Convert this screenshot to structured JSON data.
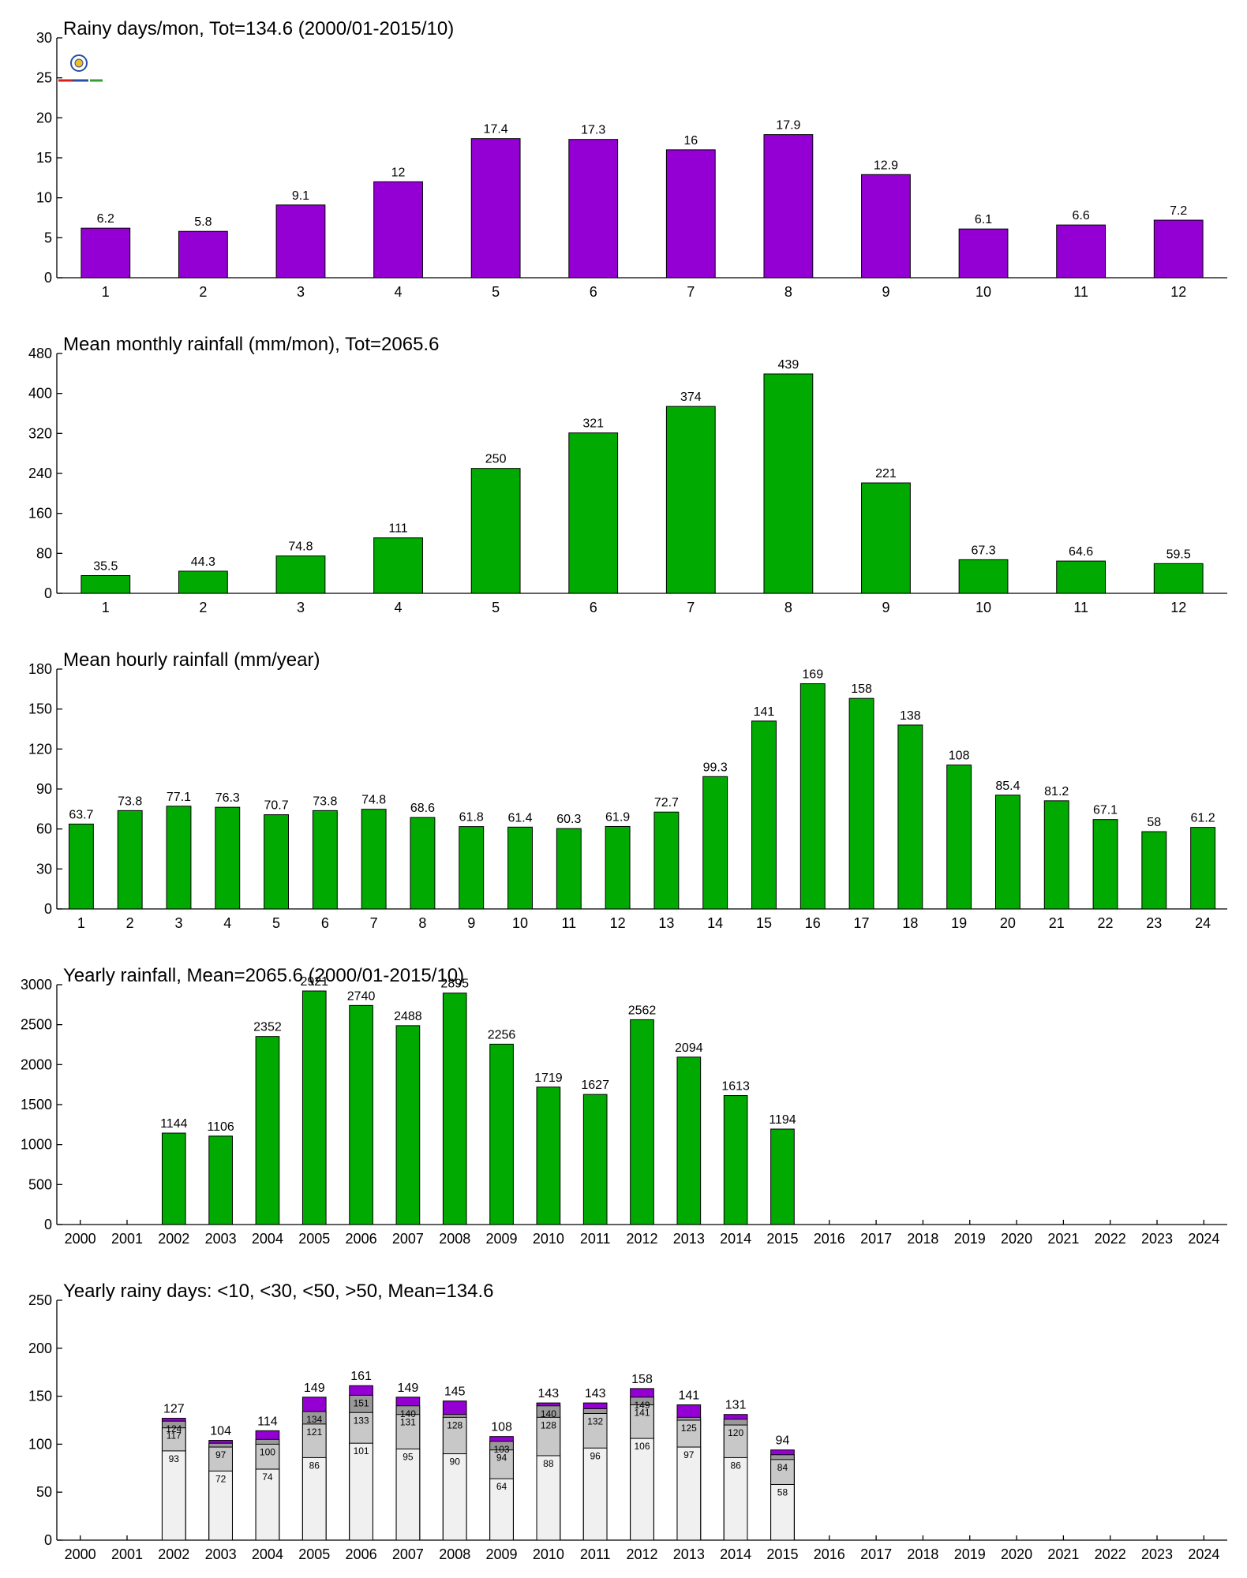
{
  "chart_data": [
    {
      "type": "bar",
      "title": "Rainy days/mon, Tot=134.6 (2000/01-2015/10)",
      "color": "#9400D3",
      "categories": [
        "1",
        "2",
        "3",
        "4",
        "5",
        "6",
        "7",
        "8",
        "9",
        "10",
        "11",
        "12"
      ],
      "values": [
        6.2,
        5.8,
        9.1,
        12,
        17.4,
        17.3,
        16,
        17.9,
        12.9,
        6.1,
        6.6,
        7.2
      ],
      "value_labels": [
        "6.2",
        "5.8",
        "9.1",
        "12",
        "17.4",
        "17.3",
        "16",
        "17.9",
        "12.9",
        "6.1",
        "6.6",
        "7.2"
      ],
      "ylim": [
        0,
        30
      ],
      "yticks": [
        "0",
        "5",
        "10",
        "15",
        "20",
        "25",
        "30"
      ],
      "grid": false
    },
    {
      "type": "bar",
      "title": "Mean monthly rainfall (mm/mon), Tot=2065.6",
      "color": "#00AA00",
      "categories": [
        "1",
        "2",
        "3",
        "4",
        "5",
        "6",
        "7",
        "8",
        "9",
        "10",
        "11",
        "12"
      ],
      "values": [
        35.5,
        44.3,
        74.8,
        111,
        250,
        321,
        374,
        439,
        221,
        67.3,
        64.6,
        59.5
      ],
      "value_labels": [
        "35.5",
        "44.3",
        "74.8",
        "111",
        "250",
        "321",
        "374",
        "439",
        "221",
        "67.3",
        "64.6",
        "59.5"
      ],
      "ylim": [
        0,
        480
      ],
      "yticks": [
        "0",
        "80",
        "160",
        "240",
        "320",
        "400",
        "480"
      ],
      "grid": false
    },
    {
      "type": "bar",
      "title": "Mean hourly rainfall (mm/year)",
      "color": "#00AA00",
      "categories": [
        "1",
        "2",
        "3",
        "4",
        "5",
        "6",
        "7",
        "8",
        "9",
        "10",
        "11",
        "12",
        "13",
        "14",
        "15",
        "16",
        "17",
        "18",
        "19",
        "20",
        "21",
        "22",
        "23",
        "24"
      ],
      "values": [
        63.7,
        73.8,
        77.1,
        76.3,
        70.7,
        73.8,
        74.8,
        68.6,
        61.8,
        61.4,
        60.3,
        61.9,
        72.7,
        99.3,
        141,
        169,
        158,
        138,
        108,
        85.4,
        81.2,
        67.1,
        58,
        61.2
      ],
      "value_labels": [
        "63.7",
        "73.8",
        "77.1",
        "76.3",
        "70.7",
        "73.8",
        "74.8",
        "68.6",
        "61.8",
        "61.4",
        "60.3",
        "61.9",
        "72.7",
        "99.3",
        "141",
        "169",
        "158",
        "138",
        "108",
        "85.4",
        "81.2",
        "67.1",
        "58",
        "61.2"
      ],
      "ylim": [
        0,
        180
      ],
      "yticks": [
        "0",
        "30",
        "60",
        "90",
        "120",
        "150",
        "180"
      ],
      "grid": false
    },
    {
      "type": "bar",
      "title": "Yearly rainfall, Mean=2065.6  (2000/01-2015/10)",
      "color": "#00AA00",
      "categories": [
        "2000",
        "2001",
        "2002",
        "2003",
        "2004",
        "2005",
        "2006",
        "2007",
        "2008",
        "2009",
        "2010",
        "2011",
        "2012",
        "2013",
        "2014",
        "2015",
        "2016",
        "2017",
        "2018",
        "2019",
        "2020",
        "2021",
        "2022",
        "2023",
        "2024"
      ],
      "values": [
        null,
        null,
        1144,
        1106,
        2352,
        2921,
        2740,
        2488,
        2895,
        2256,
        1719,
        1627,
        2562,
        2094,
        1613,
        1194,
        null,
        null,
        null,
        null,
        null,
        null,
        null,
        null,
        null
      ],
      "value_labels": [
        "",
        "",
        "1144",
        "1106",
        "2352",
        "2921",
        "2740",
        "2488",
        "2895",
        "2256",
        "1719",
        "1627",
        "2562",
        "2094",
        "1613",
        "1194",
        "",
        "",
        "",
        "",
        "",
        "",
        "",
        "",
        ""
      ],
      "ylim": [
        0,
        3000
      ],
      "yticks": [
        "0",
        "500",
        "1000",
        "1500",
        "2000",
        "2500",
        "3000"
      ],
      "grid": false
    },
    {
      "type": "bar",
      "stacked": true,
      "title": "Yearly rainy days: <10, <30, <50, >50, Mean=134.6",
      "categories": [
        "2000",
        "2001",
        "2002",
        "2003",
        "2004",
        "2005",
        "2006",
        "2007",
        "2008",
        "2009",
        "2010",
        "2011",
        "2012",
        "2013",
        "2014",
        "2015",
        "2016",
        "2017",
        "2018",
        "2019",
        "2020",
        "2021",
        "2022",
        "2023",
        "2024"
      ],
      "cumulative_values": [
        {
          "level": "<10",
          "color": "#F0F0F0",
          "values": [
            null,
            null,
            93,
            72,
            74,
            86,
            101,
            95,
            90,
            64,
            88,
            96,
            106,
            97,
            86,
            58,
            null,
            null,
            null,
            null,
            null,
            null,
            null,
            null,
            null
          ],
          "labels": [
            "",
            "",
            "93",
            "72",
            "74",
            "86",
            "101",
            "95",
            "90",
            "64",
            "88",
            "96",
            "106",
            "97",
            "86",
            "58",
            "",
            "",
            "",
            "",
            "",
            "",
            "",
            "",
            ""
          ]
        },
        {
          "level": "<30",
          "color": "#C8C8C8",
          "values": [
            null,
            null,
            117,
            97,
            100,
            121,
            133,
            131,
            128,
            94,
            128,
            132,
            141,
            125,
            120,
            84,
            null,
            null,
            null,
            null,
            null,
            null,
            null,
            null,
            null
          ],
          "labels": [
            "",
            "",
            "117",
            "97",
            "100",
            "121",
            "133",
            "131",
            "128",
            "94",
            "128",
            "132",
            "141",
            "125",
            "120",
            "84",
            "",
            "",
            "",
            "",
            "",
            "",
            "",
            "",
            ""
          ]
        },
        {
          "level": "<50",
          "color": "#999999",
          "values": [
            null,
            null,
            124,
            101,
            105,
            134,
            151,
            140,
            131,
            103,
            140,
            137,
            149,
            128,
            126,
            89,
            null,
            null,
            null,
            null,
            null,
            null,
            null,
            null,
            null
          ],
          "labels": [
            "",
            "",
            "124",
            "",
            "",
            "134",
            "151",
            "140",
            "",
            "103",
            "140",
            "",
            "149",
            "",
            "",
            "",
            "",
            "",
            "",
            "",
            "",
            "",
            "",
            "",
            ""
          ]
        },
        {
          "level": ">50",
          "color": "#9400D3",
          "values": [
            null,
            null,
            127,
            104,
            114,
            149,
            161,
            149,
            145,
            108,
            143,
            143,
            158,
            141,
            131,
            94,
            null,
            null,
            null,
            null,
            null,
            null,
            null,
            null,
            null
          ],
          "labels": [
            "",
            "",
            "127",
            "104",
            "114",
            "149",
            "161",
            "149",
            "145",
            "108",
            "143",
            "143",
            "158",
            "141",
            "131",
            "94",
            "",
            "",
            "",
            "",
            "",
            "",
            "",
            "",
            ""
          ]
        }
      ],
      "ylim": [
        0,
        250
      ],
      "yticks": [
        "0",
        "50",
        "100",
        "150",
        "200",
        "250"
      ],
      "grid": false
    }
  ]
}
